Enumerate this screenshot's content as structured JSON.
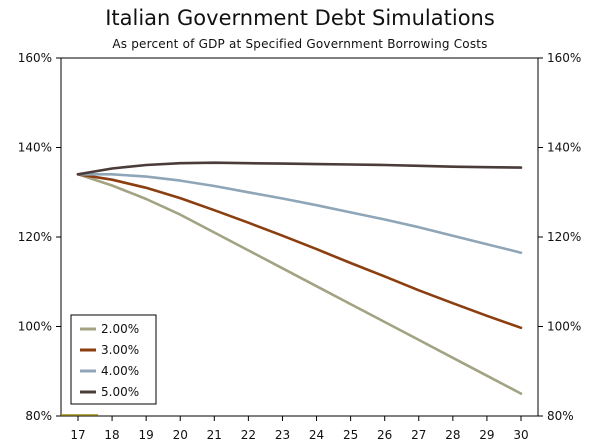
{
  "chart_data": {
    "type": "line",
    "title": "Italian Government Debt Simulations",
    "subtitle": "As percent of GDP at Specified Government Borrowing Costs",
    "xlabel": "",
    "ylabel": "",
    "x": [
      17,
      18,
      19,
      20,
      21,
      22,
      23,
      24,
      25,
      26,
      27,
      28,
      29,
      30
    ],
    "xlim": [
      17,
      30
    ],
    "ylim": [
      80,
      160
    ],
    "yticks": [
      80,
      100,
      120,
      140,
      160
    ],
    "ytick_labels": [
      "80%",
      "100%",
      "120%",
      "140%",
      "160%"
    ],
    "xtick_labels": [
      "17",
      "18",
      "19",
      "20",
      "21",
      "22",
      "23",
      "24",
      "25",
      "26",
      "27",
      "28",
      "29",
      "30"
    ],
    "grid": false,
    "legend_position": "bottom-left",
    "series": [
      {
        "name": "2.00%",
        "color": "#a3a383",
        "values": [
          134,
          131.5,
          128.5,
          125,
          121,
          117,
          113,
          109,
          105,
          101,
          97,
          93,
          89,
          85
        ]
      },
      {
        "name": "3.00%",
        "color": "#8b3e0f",
        "values": [
          134,
          132.8,
          131,
          128.7,
          126,
          123.2,
          120.3,
          117.3,
          114.2,
          111.2,
          108.1,
          105.2,
          102.4,
          99.7
        ]
      },
      {
        "name": "4.00%",
        "color": "#8fa6b8",
        "values": [
          134,
          134,
          133.5,
          132.6,
          131.4,
          130,
          128.6,
          127.1,
          125.5,
          123.9,
          122.2,
          120.3,
          118.4,
          116.5
        ]
      },
      {
        "name": "5.00%",
        "color": "#4a3c38",
        "values": [
          134,
          135.3,
          136.1,
          136.5,
          136.6,
          136.5,
          136.4,
          136.3,
          136.2,
          136.1,
          135.9,
          135.7,
          135.6,
          135.5
        ]
      }
    ]
  }
}
